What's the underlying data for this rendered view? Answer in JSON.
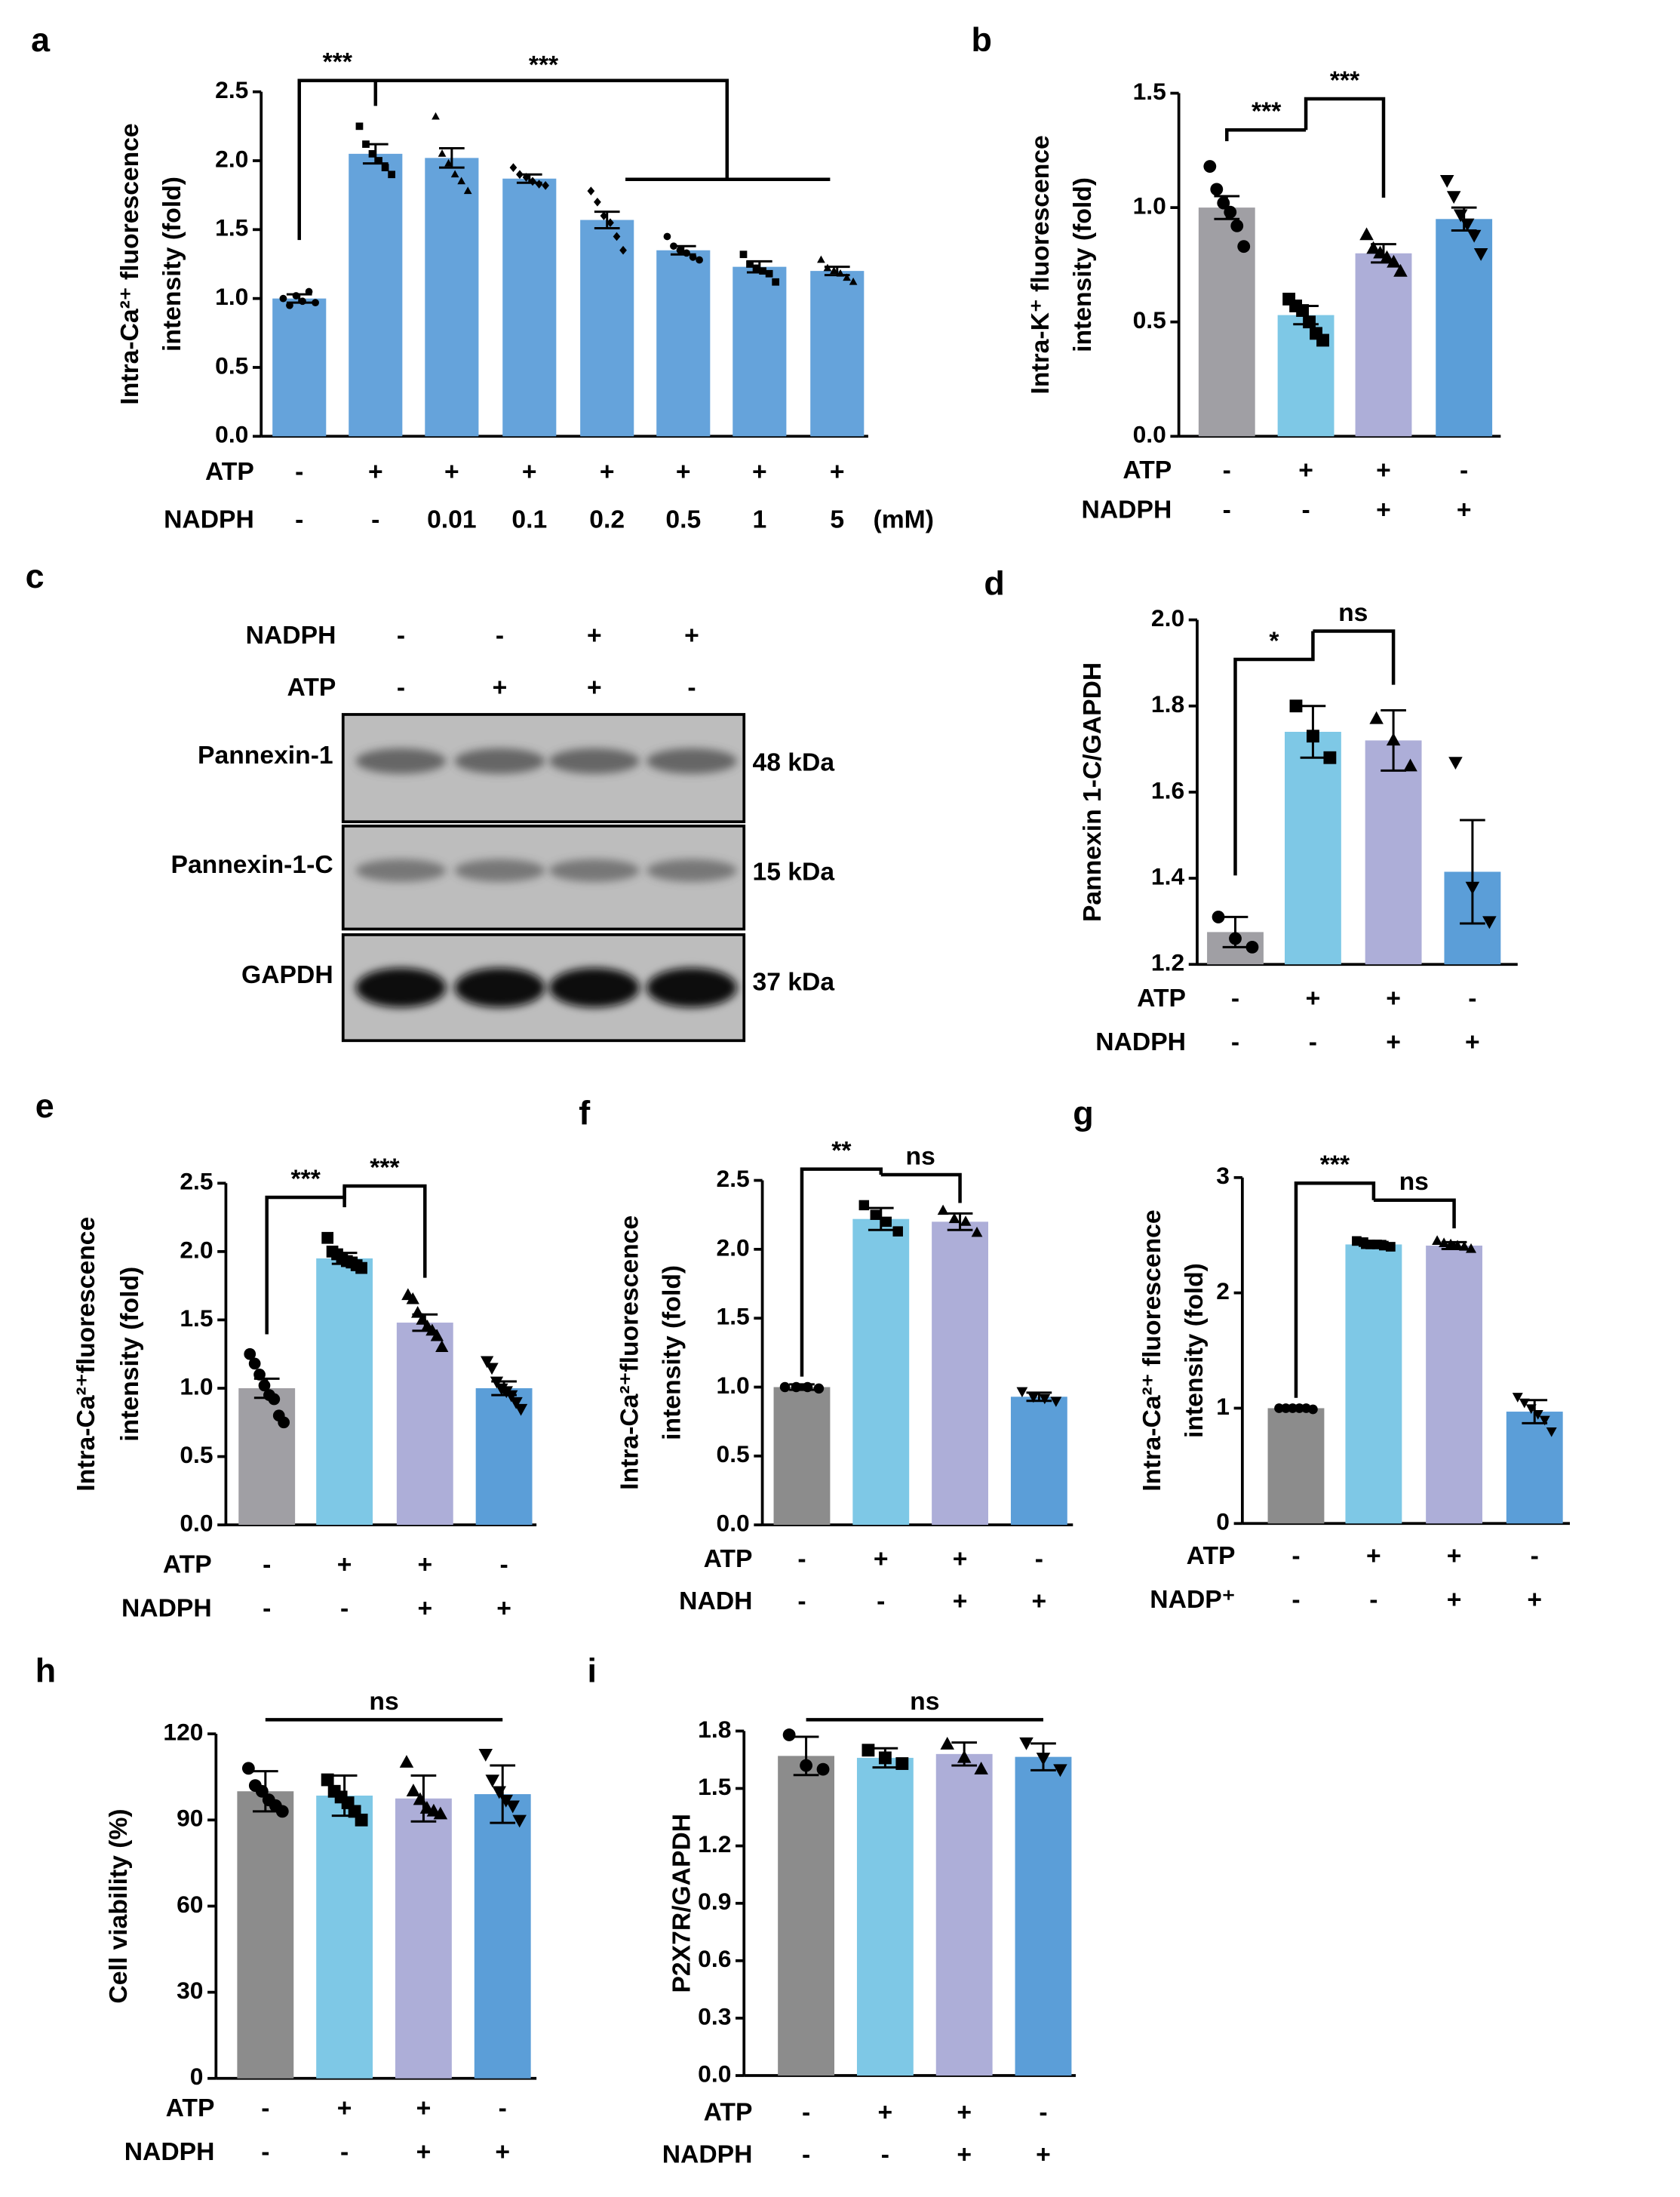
{
  "chart_data": [
    {
      "type": "bar",
      "panel": "a",
      "ylabel": [
        "Intra-Ca²⁺ fluorescence",
        "intensity (fold)"
      ],
      "ylim": [
        0,
        2.5
      ],
      "yticks": [
        {
          "value": 0,
          "label": "0.0"
        },
        0.5,
        {
          "value": 1,
          "label": "1.0"
        },
        1.5,
        {
          "value": 2,
          "label": "2.0"
        },
        2.5
      ],
      "colors": [
        "#65a3db",
        "#65a3db",
        "#65a3db",
        "#65a3db",
        "#65a3db",
        "#65a3db",
        "#65a3db",
        "#65a3db"
      ],
      "markers": [
        "circle",
        "square",
        "triangle",
        "diamond",
        "diamond",
        "circle",
        "square",
        "triangle"
      ],
      "values": [
        1.0,
        2.05,
        2.02,
        1.87,
        1.57,
        1.35,
        1.23,
        1.2
      ],
      "errors": [
        0.03,
        0.07,
        0.07,
        0.03,
        0.06,
        0.03,
        0.04,
        0.03
      ],
      "points": [
        [
          1.0,
          0.95,
          1.02,
          0.98,
          1.05,
          0.97
        ],
        [
          2.25,
          2.12,
          2.05,
          2.0,
          1.95,
          1.9
        ],
        [
          2.32,
          2.05,
          1.98,
          1.9,
          1.85,
          1.78
        ],
        [
          1.95,
          1.9,
          1.88,
          1.85,
          1.83,
          1.82
        ],
        [
          1.78,
          1.7,
          1.6,
          1.55,
          1.45,
          1.35
        ],
        [
          1.45,
          1.38,
          1.35,
          1.33,
          1.3,
          1.28
        ],
        [
          1.32,
          1.25,
          1.22,
          1.2,
          1.18,
          1.12
        ],
        [
          1.28,
          1.22,
          1.2,
          1.18,
          1.15,
          1.12
        ]
      ],
      "conditions": [
        {
          "name": "ATP",
          "labels": [
            "-",
            "+",
            "+",
            "+",
            "+",
            "+",
            "+",
            "+"
          ]
        },
        {
          "name": "NADPH",
          "labels": [
            "-",
            "-",
            "0.01",
            "0.1",
            "0.2",
            "0.5",
            "1",
            "5"
          ]
        }
      ],
      "unit": "(mM)",
      "annotations": [
        "***",
        "***"
      ]
    },
    {
      "type": "bar",
      "panel": "b",
      "ylabel": [
        "Intra-K⁺ fluorescence",
        "intensity (fold)"
      ],
      "ylim": [
        0,
        1.5
      ],
      "yticks": [
        {
          "value": 0,
          "label": "0.0"
        },
        0.5,
        {
          "value": 1,
          "label": "1.0"
        },
        1.5
      ],
      "colors": [
        "#a09fa4",
        "#7ec8e6",
        "#adaed8",
        "#5b9ed8"
      ],
      "markers": [
        "circle",
        "square",
        "triangle",
        "triangle-down"
      ],
      "values": [
        1.0,
        0.53,
        0.8,
        0.95
      ],
      "errors": [
        0.05,
        0.04,
        0.04,
        0.05
      ],
      "points": [
        [
          1.18,
          1.08,
          1.02,
          0.98,
          0.92,
          0.83
        ],
        [
          0.6,
          0.57,
          0.55,
          0.5,
          0.45,
          0.42
        ],
        [
          0.88,
          0.82,
          0.8,
          0.78,
          0.76,
          0.72
        ],
        [
          1.12,
          1.05,
          0.97,
          0.93,
          0.88,
          0.8
        ]
      ],
      "conditions": [
        {
          "name": "ATP",
          "labels": [
            "-",
            "+",
            "+",
            "-"
          ]
        },
        {
          "name": "NADPH",
          "labels": [
            "-",
            "-",
            "+",
            "+"
          ]
        }
      ],
      "annotations": [
        "***",
        "***"
      ]
    },
    {
      "type": "bar",
      "panel": "d",
      "ylabel": [
        "Pannexin 1-C/GAPDH"
      ],
      "ylim": [
        1.2,
        2.0
      ],
      "yticks": [
        1.2,
        1.4,
        1.6,
        1.8,
        {
          "value": 2,
          "label": "2.0"
        }
      ],
      "colors": [
        "#a09fa4",
        "#7ec8e6",
        "#adaed8",
        "#5b9ed8"
      ],
      "markers": [
        "circle",
        "square",
        "triangle",
        "triangle-down"
      ],
      "values": [
        1.275,
        1.74,
        1.72,
        1.415
      ],
      "errors": [
        0.035,
        0.06,
        0.07,
        0.12
      ],
      "points": [
        [
          1.31,
          1.26,
          1.24
        ],
        [
          1.8,
          1.73,
          1.68
        ],
        [
          1.77,
          1.72,
          1.66
        ],
        [
          1.67,
          1.38,
          1.3
        ]
      ],
      "conditions": [
        {
          "name": "ATP",
          "labels": [
            "-",
            "+",
            "+",
            "-"
          ]
        },
        {
          "name": "NADPH",
          "labels": [
            "-",
            "-",
            "+",
            "+"
          ]
        }
      ],
      "annotations": [
        "*",
        "ns"
      ]
    },
    {
      "type": "bar",
      "panel": "e",
      "ylabel": [
        "Intra-Ca²⁺fluorescence",
        "intensity (fold)"
      ],
      "ylim": [
        0,
        2.5
      ],
      "yticks": [
        {
          "value": 0,
          "label": "0.0"
        },
        0.5,
        {
          "value": 1,
          "label": "1.0"
        },
        1.5,
        {
          "value": 2,
          "label": "2.0"
        },
        2.5
      ],
      "colors": [
        "#a09fa4",
        "#7ec8e6",
        "#adaed8",
        "#5b9ed8"
      ],
      "markers": [
        "circle",
        "square",
        "triangle",
        "triangle-down"
      ],
      "values": [
        1.0,
        1.95,
        1.48,
        1.0
      ],
      "errors": [
        0.07,
        0.04,
        0.06,
        0.05
      ],
      "points": [
        [
          1.25,
          1.18,
          1.1,
          1.02,
          0.95,
          0.92,
          0.8,
          0.75
        ],
        [
          2.1,
          2.0,
          1.98,
          1.95,
          1.93,
          1.92,
          1.9,
          1.88
        ],
        [
          1.68,
          1.65,
          1.55,
          1.5,
          1.45,
          1.42,
          1.38,
          1.3
        ],
        [
          1.2,
          1.15,
          1.05,
          1.0,
          0.98,
          0.95,
          0.9,
          0.85
        ]
      ],
      "conditions": [
        {
          "name": "ATP",
          "labels": [
            "-",
            "+",
            "+",
            "-"
          ]
        },
        {
          "name": "NADPH",
          "labels": [
            "-",
            "-",
            "+",
            "+"
          ]
        }
      ],
      "annotations": [
        "***",
        "***"
      ]
    },
    {
      "type": "bar",
      "panel": "f",
      "ylabel": [
        "Intra-Ca²⁺fluorescence",
        "intensity (fold)"
      ],
      "ylim": [
        0,
        2.5
      ],
      "yticks": [
        {
          "value": 0,
          "label": "0.0"
        },
        0.5,
        {
          "value": 1,
          "label": "1.0"
        },
        1.5,
        {
          "value": 2,
          "label": "2.0"
        },
        2.5
      ],
      "colors": [
        "#8c8c8c",
        "#7ec8e6",
        "#adaed8",
        "#5b9ed8"
      ],
      "markers": [
        "circle",
        "square",
        "triangle",
        "triangle-down"
      ],
      "values": [
        1.0,
        2.22,
        2.2,
        0.93
      ],
      "errors": [
        0.02,
        0.08,
        0.06,
        0.03
      ],
      "points": [
        [
          1.0,
          1.0,
          1.0,
          0.99
        ],
        [
          2.32,
          2.25,
          2.2,
          2.13
        ],
        [
          2.28,
          2.22,
          2.2,
          2.12
        ],
        [
          0.97,
          0.93,
          0.92,
          0.9
        ]
      ],
      "conditions": [
        {
          "name": "ATP",
          "labels": [
            "-",
            "+",
            "+",
            "-"
          ]
        },
        {
          "name": "NADH",
          "labels": [
            "-",
            "-",
            "+",
            "+"
          ]
        }
      ],
      "annotations": [
        "**",
        "ns"
      ]
    },
    {
      "type": "bar",
      "panel": "g",
      "ylabel": [
        "Intra-Ca²⁺ fluorescence",
        "intensity (fold)"
      ],
      "ylim": [
        0,
        3
      ],
      "yticks": [
        0,
        1,
        2,
        3
      ],
      "colors": [
        "#8c8c8c",
        "#7ec8e6",
        "#adaed8",
        "#5b9ed8"
      ],
      "markers": [
        "circle",
        "square",
        "triangle",
        "triangle-down"
      ],
      "values": [
        1.0,
        2.42,
        2.41,
        0.97
      ],
      "errors": [
        0.02,
        0.03,
        0.03,
        0.1
      ],
      "points": [
        [
          1.0,
          1.0,
          1.0,
          1.0,
          1.0,
          0.99
        ],
        [
          2.45,
          2.44,
          2.42,
          2.42,
          2.41,
          2.4
        ],
        [
          2.45,
          2.43,
          2.42,
          2.41,
          2.4,
          2.38
        ],
        [
          1.1,
          1.05,
          1.0,
          0.95,
          0.9,
          0.8
        ]
      ],
      "conditions": [
        {
          "name": "ATP",
          "labels": [
            "-",
            "+",
            "+",
            "-"
          ]
        },
        {
          "name": "NADP⁺",
          "labels": [
            "-",
            "-",
            "+",
            "+"
          ]
        }
      ],
      "annotations": [
        "***",
        "ns"
      ]
    },
    {
      "type": "bar",
      "panel": "h",
      "ylabel": [
        "Cell viability (%)"
      ],
      "ylim": [
        0,
        120
      ],
      "yticks": [
        0,
        30,
        60,
        90,
        120
      ],
      "colors": [
        "#8c8c8c",
        "#7ec8e6",
        "#adaed8",
        "#5b9ed8"
      ],
      "markers": [
        "circle",
        "square",
        "triangle",
        "triangle-down"
      ],
      "values": [
        100,
        98.5,
        97.5,
        99
      ],
      "errors": [
        7,
        7,
        8,
        10
      ],
      "points": [
        [
          108,
          102,
          100,
          97,
          95,
          93
        ],
        [
          104,
          100,
          98,
          96,
          93,
          90
        ],
        [
          110,
          100,
          97,
          94,
          93,
          92
        ],
        [
          113,
          104,
          100,
          97,
          95,
          90
        ]
      ],
      "conditions": [
        {
          "name": "ATP",
          "labels": [
            "-",
            "+",
            "+",
            "-"
          ]
        },
        {
          "name": "NADPH",
          "labels": [
            "-",
            "-",
            "+",
            "+"
          ]
        }
      ],
      "annotations": [
        "ns"
      ]
    },
    {
      "type": "bar",
      "panel": "i",
      "ylabel": [
        "P2X7R/GAPDH"
      ],
      "ylim": [
        0,
        1.8
      ],
      "yticks": [
        {
          "value": 0,
          "label": "0.0"
        },
        0.3,
        0.6,
        0.9,
        1.2,
        1.5,
        1.8
      ],
      "colors": [
        "#8c8c8c",
        "#7ec8e6",
        "#adaed8",
        "#5b9ed8"
      ],
      "markers": [
        "circle",
        "square",
        "triangle",
        "triangle-down"
      ],
      "values": [
        1.67,
        1.66,
        1.68,
        1.665
      ],
      "errors": [
        0.1,
        0.05,
        0.06,
        0.07
      ],
      "points": [
        [
          1.78,
          1.62,
          1.6
        ],
        [
          1.7,
          1.66,
          1.63
        ],
        [
          1.73,
          1.66,
          1.6
        ],
        [
          1.74,
          1.66,
          1.6
        ]
      ],
      "conditions": [
        {
          "name": "ATP",
          "labels": [
            "-",
            "+",
            "+",
            "-"
          ]
        },
        {
          "name": "NADPH",
          "labels": [
            "-",
            "-",
            "+",
            "+"
          ]
        }
      ],
      "annotations": [
        "ns"
      ]
    }
  ],
  "western_blot": {
    "panel": "c",
    "conditions": [
      {
        "name": "NADPH",
        "labels": [
          "-",
          "-",
          "+",
          "+"
        ]
      },
      {
        "name": "ATP",
        "labels": [
          "-",
          "+",
          "+",
          "-"
        ]
      }
    ],
    "rows": [
      {
        "name": "Pannexin-1",
        "size": "48 kDa"
      },
      {
        "name": "Pannexin-1-C",
        "size": "15 kDa"
      },
      {
        "name": "GAPDH",
        "size": "37 kDa"
      }
    ]
  }
}
